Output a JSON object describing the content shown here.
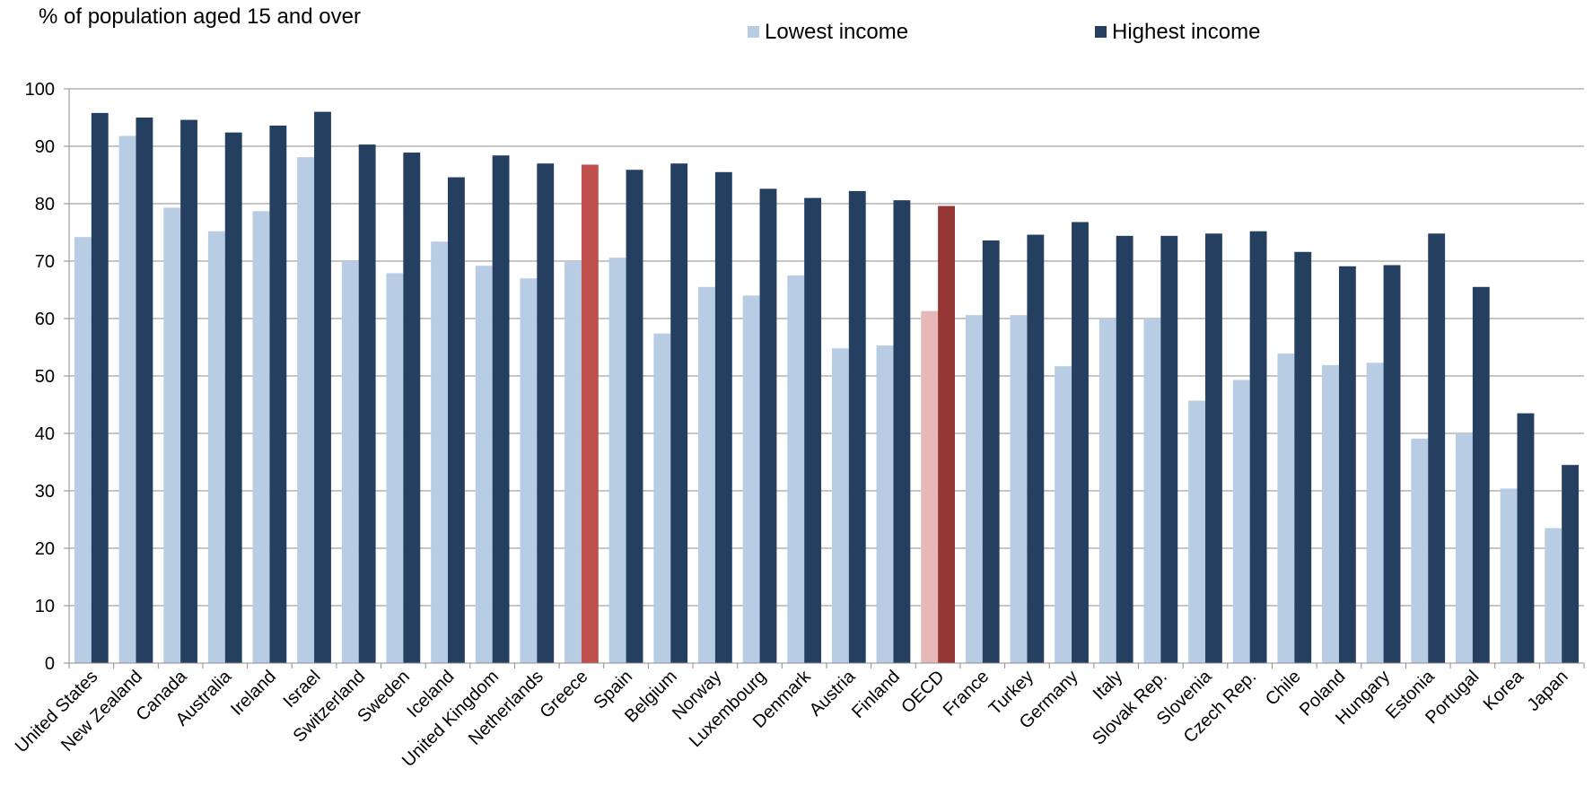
{
  "chart_data": {
    "type": "bar",
    "title": "",
    "ylabel": "% of population aged 15 and over",
    "xlabel": "",
    "ylim": [
      0,
      100
    ],
    "yticks": [
      0,
      10,
      20,
      30,
      40,
      50,
      60,
      70,
      80,
      90,
      100
    ],
    "grid": true,
    "legend_position": "top",
    "categories": [
      "United States",
      "New Zealand",
      "Canada",
      "Australia",
      "Ireland",
      "Israel",
      "Switzerland",
      "Sweden",
      "Iceland",
      "United Kingdom",
      "Netherlands",
      "Greece",
      "Spain",
      "Belgium",
      "Norway",
      "Luxembourg",
      "Denmark",
      "Austria",
      "Finland",
      "OECD",
      "France",
      "Turkey",
      "Germany",
      "Italy",
      "Slovak Rep.",
      "Slovenia",
      "Czech Rep.",
      "Chile",
      "Poland",
      "Hungary",
      "Estonia",
      "Portugal",
      "Korea",
      "Japan"
    ],
    "series": [
      {
        "name": "Lowest income",
        "color": "#b8cce4",
        "values": [
          74.2,
          91.8,
          79.3,
          75.2,
          78.7,
          88.1,
          70.0,
          67.9,
          73.4,
          69.2,
          67.0,
          70.0,
          70.6,
          57.4,
          65.5,
          64.0,
          67.5,
          54.8,
          55.3,
          61.3,
          60.6,
          60.6,
          51.7,
          60.0,
          60.0,
          45.7,
          49.3,
          53.9,
          51.9,
          52.3,
          39.1,
          40.0,
          30.4,
          23.5
        ]
      },
      {
        "name": "Highest income",
        "color": "#243f60",
        "values": [
          95.8,
          95.0,
          94.6,
          92.4,
          93.6,
          96.0,
          90.3,
          88.9,
          84.6,
          88.4,
          87.0,
          86.8,
          85.9,
          87.0,
          85.5,
          82.6,
          81.0,
          82.2,
          80.6,
          79.6,
          73.6,
          74.6,
          76.8,
          74.4,
          74.4,
          74.8,
          75.2,
          71.6,
          69.1,
          69.3,
          74.8,
          65.5,
          43.5,
          34.5
        ]
      }
    ],
    "highlights": {
      "Greece": {
        "Lowest income": "#b8cce4",
        "Highest income": "#c0504d"
      },
      "OECD": {
        "Lowest income": "#e6b9b8",
        "Highest income": "#943634"
      }
    }
  }
}
